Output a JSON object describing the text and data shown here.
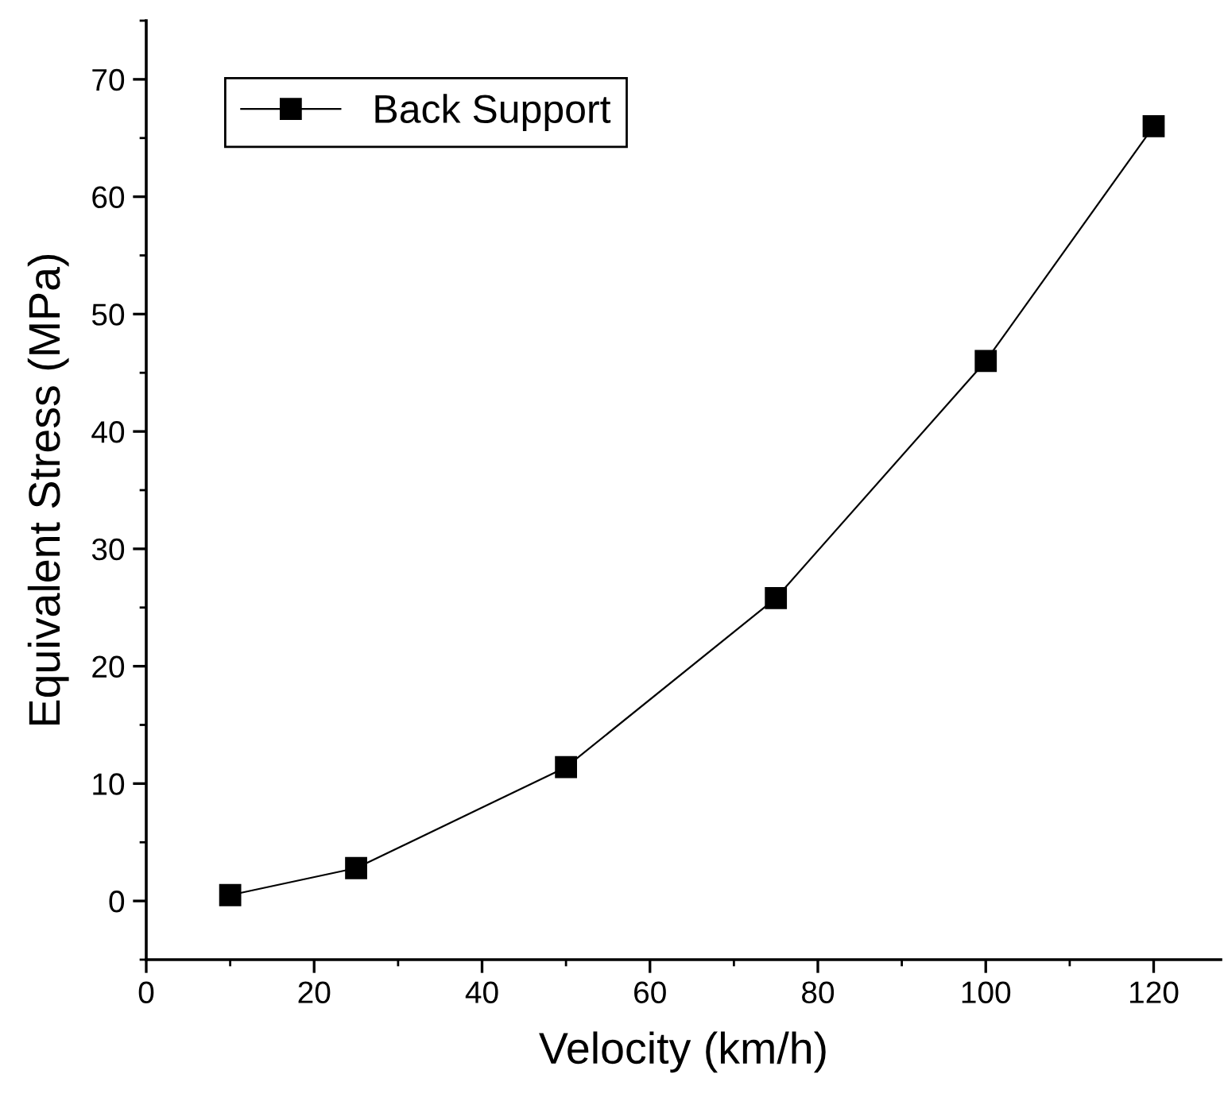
{
  "chart_data": {
    "type": "line",
    "xlabel": "Velocity (km/h)",
    "ylabel": "Equivalent Stress (MPa)",
    "x": [
      10,
      25,
      50,
      75,
      100,
      120
    ],
    "series": [
      {
        "name": "Back Support",
        "color": "#000000",
        "values": [
          0.5,
          2.8,
          11.4,
          25.8,
          46,
          66
        ]
      }
    ],
    "xlim": [
      0,
      128
    ],
    "xticks": [
      0,
      20,
      40,
      60,
      80,
      100,
      120
    ],
    "ylim": [
      -5,
      75
    ],
    "yticks": [
      0,
      10,
      20,
      30,
      40,
      50,
      60,
      70
    ],
    "marker": "square",
    "line_style": "solid",
    "grid": false,
    "legend": "top left"
  }
}
